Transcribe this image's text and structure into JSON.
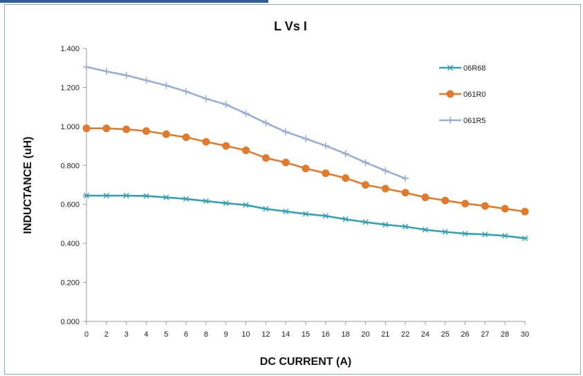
{
  "chart_data": {
    "type": "line",
    "title": "L Vs I",
    "xlabel": "DC CURRENT (A)",
    "ylabel": "INDUCTANCE (uH)",
    "ylim": [
      0,
      1.4
    ],
    "yticks": [
      "0.000",
      "0.200",
      "0.400",
      "0.600",
      "0.800",
      "1.000",
      "1.200",
      "1.400"
    ],
    "categories": [
      "0",
      "2",
      "3",
      "4",
      "5",
      "6",
      "8",
      "9",
      "10",
      "12",
      "14",
      "15",
      "16",
      "18",
      "20",
      "21",
      "22",
      "24",
      "25",
      "26",
      "27",
      "28",
      "30"
    ],
    "grid": false,
    "legend_position": "top-right",
    "series": [
      {
        "name": "06R68",
        "color": "#31a0b0",
        "marker": "asterisk",
        "values": [
          0.645,
          0.645,
          0.645,
          0.643,
          0.636,
          0.628,
          0.617,
          0.606,
          0.597,
          0.577,
          0.564,
          0.551,
          0.541,
          0.524,
          0.509,
          0.496,
          0.486,
          0.47,
          0.459,
          0.45,
          0.446,
          0.439,
          0.426
        ]
      },
      {
        "name": "061R0",
        "color": "#e07b2e",
        "marker": "circle",
        "values": [
          0.99,
          0.99,
          0.985,
          0.976,
          0.96,
          0.944,
          0.921,
          0.9,
          0.877,
          0.838,
          0.815,
          0.784,
          0.76,
          0.735,
          0.7,
          0.681,
          0.66,
          0.636,
          0.62,
          0.604,
          0.592,
          0.578,
          0.563
        ]
      },
      {
        "name": "061R5",
        "color": "#98aed3",
        "marker": "plus",
        "values": [
          1.305,
          1.282,
          1.262,
          1.236,
          1.21,
          1.179,
          1.142,
          1.112,
          1.066,
          1.018,
          0.972,
          0.937,
          0.901,
          0.86,
          0.815,
          0.773,
          0.733,
          null,
          null,
          null,
          null,
          null,
          null
        ]
      }
    ]
  }
}
